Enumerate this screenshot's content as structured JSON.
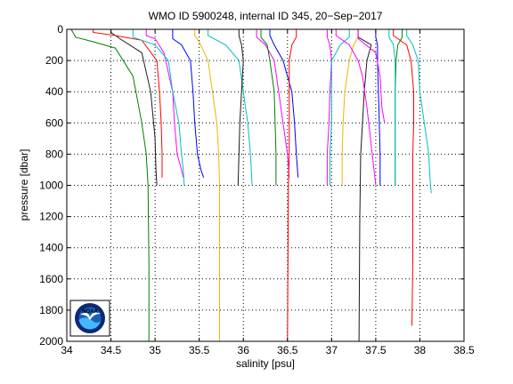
{
  "chart_data": {
    "type": "line",
    "title": "WMO ID 5900248, internal ID 345, 20−Sep−2017",
    "xlabel": "salinity [psu]",
    "ylabel": "pressure [dbar]",
    "xlim": [
      34,
      38.5
    ],
    "ylim": [
      0,
      2000
    ],
    "y_reversed": true,
    "grid": true,
    "grid_style": "dotted",
    "xticks": [
      34,
      34.5,
      35,
      35.5,
      36,
      36.5,
      37,
      37.5,
      38,
      38.5
    ],
    "xtick_labels": [
      "34",
      "34.5",
      "35",
      "35.5",
      "36",
      "36.5",
      "37",
      "37.5",
      "38",
      "38.5"
    ],
    "yticks": [
      0,
      200,
      400,
      600,
      800,
      1000,
      1200,
      1400,
      1600,
      1800,
      2000
    ],
    "ytick_labels": [
      "0",
      "200",
      "400",
      "600",
      "800",
      "1000",
      "1200",
      "1400",
      "1600",
      "1800",
      "2000"
    ],
    "series": [
      {
        "color": "#008000",
        "x": [
          34.05,
          34.1,
          34.3,
          34.55,
          34.75,
          34.85,
          34.9,
          34.92,
          34.93,
          34.93
        ],
        "y": [
          0,
          50,
          80,
          120,
          300,
          600,
          800,
          1000,
          1500,
          2000
        ]
      },
      {
        "color": "#1a1a1a",
        "x": [
          34.5,
          34.5,
          34.6,
          34.85,
          34.95,
          35.0,
          35.01,
          35.02
        ],
        "y": [
          0,
          20,
          60,
          150,
          400,
          700,
          900,
          1000
        ]
      },
      {
        "color": "#e6b800",
        "x": [
          35.45,
          35.45,
          35.5,
          35.6,
          35.65,
          35.7,
          35.72,
          35.73,
          35.73
        ],
        "y": [
          0,
          40,
          80,
          200,
          400,
          600,
          800,
          1000,
          2000
        ]
      },
      {
        "color": "#0000ff",
        "x": [
          35.2,
          35.2,
          35.3,
          35.4,
          35.43,
          35.45,
          35.48,
          35.52,
          35.55
        ],
        "y": [
          0,
          60,
          100,
          200,
          400,
          600,
          800,
          900,
          950
        ]
      },
      {
        "color": "#ff0000",
        "x": [
          34.3,
          34.3,
          34.55,
          34.85,
          35.02,
          35.05,
          35.07,
          35.08,
          35.08
        ],
        "y": [
          0,
          20,
          40,
          70,
          200,
          400,
          600,
          800,
          950
        ]
      },
      {
        "color": "#ff00ff",
        "x": [
          34.9,
          34.9,
          35.0,
          35.1,
          35.2,
          35.22,
          35.25,
          35.3,
          35.32
        ],
        "y": [
          0,
          40,
          60,
          150,
          400,
          600,
          800,
          900,
          950
        ]
      },
      {
        "color": "#00bfbf",
        "x": [
          34.75,
          34.75,
          35.0,
          35.15,
          35.2,
          35.27,
          35.3,
          35.32,
          35.33
        ],
        "y": [
          0,
          50,
          100,
          200,
          400,
          600,
          800,
          900,
          1000
        ]
      },
      {
        "color": "#00bfbf",
        "x": [
          35.6,
          35.6,
          35.8,
          35.95,
          36.0,
          36.05,
          36.08,
          36.1
        ],
        "y": [
          0,
          40,
          100,
          200,
          400,
          600,
          800,
          1000
        ]
      },
      {
        "color": "#1a1a1a",
        "x": [
          35.95,
          35.95,
          35.98,
          36.0,
          35.98,
          35.96,
          35.95,
          35.94
        ],
        "y": [
          0,
          40,
          100,
          200,
          400,
          600,
          800,
          1000
        ]
      },
      {
        "color": "#0000ff",
        "x": [
          36.3,
          36.3,
          36.35,
          36.45,
          36.55,
          36.58,
          36.6,
          36.62
        ],
        "y": [
          0,
          40,
          100,
          200,
          400,
          600,
          800,
          950
        ]
      },
      {
        "color": "#ff00ff",
        "x": [
          36.15,
          36.15,
          36.25,
          36.35,
          36.4,
          36.45,
          36.5,
          36.52
        ],
        "y": [
          0,
          50,
          100,
          200,
          400,
          600,
          800,
          950
        ]
      },
      {
        "color": "#008000",
        "x": [
          36.2,
          36.2,
          36.27,
          36.3,
          36.35,
          36.36,
          36.37,
          36.37
        ],
        "y": [
          0,
          50,
          100,
          200,
          400,
          600,
          800,
          1000
        ]
      },
      {
        "color": "#ff0000",
        "x": [
          36.6,
          36.6,
          36.55,
          36.52,
          36.52,
          36.52,
          36.52,
          36.51,
          36.5
        ],
        "y": [
          0,
          50,
          100,
          200,
          400,
          600,
          800,
          1000,
          2000
        ]
      },
      {
        "color": "#ff00ff",
        "x": [
          36.95,
          36.95,
          36.98,
          37.0,
          36.98,
          36.97,
          36.95,
          36.95
        ],
        "y": [
          0,
          50,
          100,
          200,
          400,
          600,
          800,
          1000
        ]
      },
      {
        "color": "#e6b800",
        "x": [
          37.3,
          37.3,
          37.25,
          37.2,
          37.15,
          37.13,
          37.12,
          37.12
        ],
        "y": [
          0,
          50,
          100,
          200,
          400,
          600,
          800,
          1000
        ]
      },
      {
        "color": "#00bfbf",
        "x": [
          37.2,
          37.2,
          37.1,
          37.0,
          37.0,
          37.0,
          36.98,
          36.98
        ],
        "y": [
          0,
          50,
          100,
          200,
          400,
          600,
          800,
          1000
        ]
      },
      {
        "color": "#1a1a1a",
        "x": [
          37.3,
          37.3,
          37.45,
          37.4,
          37.37,
          37.35,
          37.33,
          37.32,
          37.31
        ],
        "y": [
          0,
          50,
          100,
          200,
          400,
          600,
          800,
          1200,
          2000
        ]
      },
      {
        "color": "#0000ff",
        "x": [
          37.5,
          37.5,
          37.52,
          37.52,
          37.53,
          37.54,
          37.55,
          37.55
        ],
        "y": [
          0,
          50,
          100,
          200,
          400,
          600,
          800,
          1000
        ]
      },
      {
        "color": "#008000",
        "x": [
          37.8,
          37.8,
          37.75,
          37.73,
          37.72,
          37.72,
          37.72,
          37.72
        ],
        "y": [
          0,
          50,
          100,
          200,
          400,
          600,
          800,
          1000
        ]
      },
      {
        "color": "#00bfbf",
        "x": [
          37.65,
          37.65,
          37.7,
          37.72,
          37.72,
          37.72,
          37.72,
          37.72
        ],
        "y": [
          0,
          50,
          100,
          200,
          400,
          600,
          800,
          1000
        ]
      },
      {
        "color": "#ff0000",
        "x": [
          37.7,
          37.7,
          37.85,
          37.9,
          37.93,
          37.93,
          37.92,
          37.92,
          37.92,
          37.91
        ],
        "y": [
          0,
          40,
          100,
          200,
          400,
          600,
          800,
          1000,
          1500,
          1900
        ]
      },
      {
        "color": "#00bfbf",
        "x": [
          37.85,
          37.85,
          37.92,
          37.98,
          38.0,
          38.05,
          38.1,
          38.12,
          38.13
        ],
        "y": [
          0,
          40,
          100,
          200,
          400,
          600,
          800,
          1000,
          1050
        ]
      },
      {
        "color": "#ff00ff",
        "x": [
          37.3,
          37.3,
          37.5,
          37.55,
          37.57,
          37.6
        ],
        "y": [
          0,
          60,
          150,
          300,
          500,
          600
        ]
      },
      {
        "color": "#ff00ff",
        "x": [
          37.05,
          37.05,
          37.2,
          37.3,
          37.35,
          37.4,
          37.5
        ],
        "y": [
          0,
          40,
          100,
          200,
          300,
          500,
          1000
        ]
      }
    ]
  },
  "logo": {
    "label": "NOAA",
    "colors": {
      "ring": "#0b2a74",
      "sky": "#1e5fb4",
      "wave": "#44b8ff",
      "gull": "#ffffff"
    }
  }
}
